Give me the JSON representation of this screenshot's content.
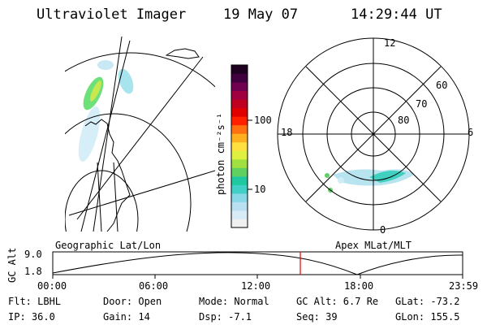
{
  "header": {
    "instrument": "Ultraviolet Imager",
    "date": "19 May 07",
    "time": "14:29:44 UT"
  },
  "colorbar": {
    "label": "photon cm⁻²s⁻¹",
    "ticks": [
      "100",
      "10"
    ],
    "colors": [
      "#f0f0f0",
      "#d8ecf8",
      "#b8e0f0",
      "#88d8e8",
      "#40d0c8",
      "#20c8a0",
      "#60d060",
      "#a0e040",
      "#e0f040",
      "#ffe040",
      "#ffb020",
      "#ff7010",
      "#ff2000",
      "#e00000",
      "#c00020",
      "#a00040",
      "#700050",
      "#400040",
      "#200020"
    ]
  },
  "polar": {
    "mlt_labels": {
      "top": "12",
      "bottom": "0",
      "left": "18",
      "right": "6"
    },
    "lat_labels": [
      "60",
      "70",
      "80"
    ]
  },
  "timeline": {
    "left_label": "Geographic Lat/Lon",
    "right_label": "Apex MLat/MLT",
    "axis_label": "GC Alt",
    "y_max": "9.0",
    "y_min": "1.8",
    "x_ticks": [
      "00:00",
      "06:00",
      "12:00",
      "18:00",
      "23:59"
    ],
    "current_time_frac": 0.604
  },
  "info": {
    "filter": "Flt: LBHL",
    "ip": "IP: 36.0",
    "door": "Door: Open",
    "gain": "Gain: 14",
    "mode": "Mode: Normal",
    "dsp": "Dsp:  -7.1",
    "gc_alt": "GC Alt: 6.7 Re",
    "seq": "Seq: 39",
    "glat": "GLat: -73.2",
    "glon": "GLon: 155.5"
  }
}
